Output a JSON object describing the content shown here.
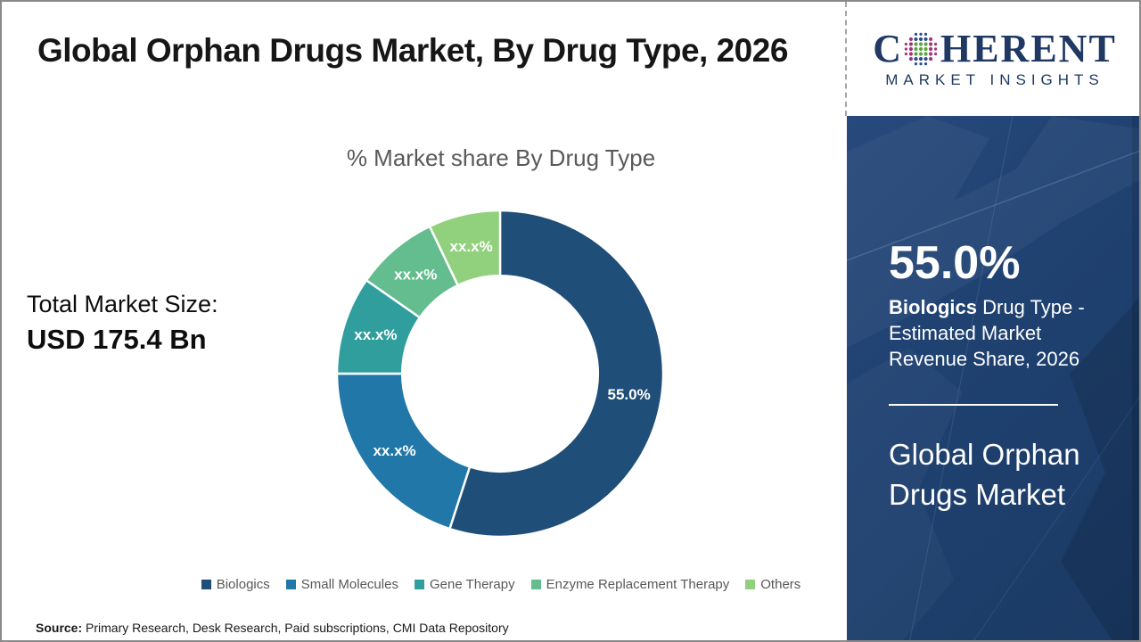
{
  "header": {
    "title": "Global Orphan Drugs Market, By Drug Type, 2026"
  },
  "logo": {
    "line1_pre": "C",
    "line1_post": "HERENT",
    "line2": "MARKET INSIGHTS",
    "navy": "#1F3864",
    "dot_green": "#56A73C",
    "dot_magenta": "#A3327F",
    "dot_blue": "#2C4A8C"
  },
  "left_panel": {
    "total_label": "Total Market Size:",
    "total_value": "USD 175.4 Bn"
  },
  "chart_data": {
    "type": "pie",
    "subtype": "donut",
    "title": "% Market share By Drug Type",
    "categories": [
      "Biologics",
      "Small Molecules",
      "Gene Therapy",
      "Enzyme Replacement Therapy",
      "Others"
    ],
    "values": [
      55.0,
      20.0,
      9.7,
      8.2,
      7.1
    ],
    "slice_labels": [
      "55.0%",
      "xx.x%",
      "xx.x%",
      "xx.x%",
      "xx.x%"
    ],
    "colors": [
      "#1F4E79",
      "#2077A8",
      "#2F9E9D",
      "#63BD8E",
      "#91D17D"
    ],
    "inner_radius_ratio": 0.6,
    "start_angle_deg": 0,
    "legend_position": "bottom",
    "slice_border_color": "#FFFFFF"
  },
  "sidebar": {
    "big_number": "55.0%",
    "desc_bold": "Biologics",
    "desc_rest": " Drug Type - Estimated Market Revenue Share, 2026",
    "market_name": "Global Orphan Drugs Market",
    "bg_color": "#1F4170"
  },
  "footer": {
    "source_label": "Source:",
    "source_text": " Primary Research, Desk Research, Paid subscriptions, CMI Data Repository"
  }
}
